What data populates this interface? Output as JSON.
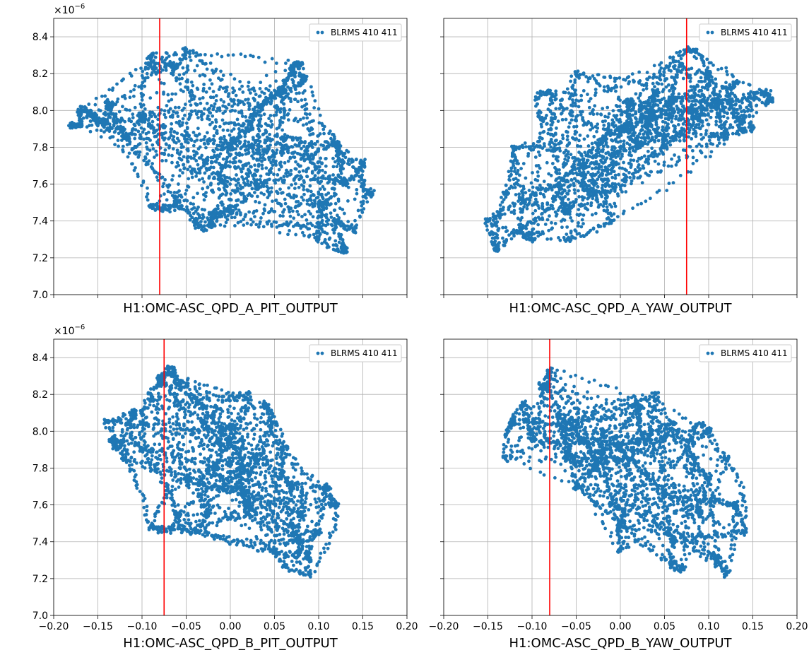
{
  "colors": {
    "series": "#1f77b4",
    "marker_line": "#ff0000",
    "grid": "#b0b0b0"
  },
  "y_exponent": {
    "base": "×10",
    "power": "−6"
  },
  "y_tick_labels": [
    "7.0",
    "7.2",
    "7.4",
    "7.6",
    "7.8",
    "8.0",
    "8.2",
    "8.4"
  ],
  "x_tick_labels": [
    "−0.20",
    "−0.15",
    "−0.10",
    "−0.05",
    "0.00",
    "0.05",
    "0.10",
    "0.15",
    "0.20"
  ],
  "chart_data": [
    {
      "type": "scatter",
      "xlabel": "H1:OMC-ASC_QPD_A_PIT_OUTPUT",
      "ylabel": "",
      "xlim": [
        -0.2,
        0.2
      ],
      "ylim": [
        7e-06,
        8.5e-06
      ],
      "grid": true,
      "legend_position": "top-right",
      "vline_x": -0.08,
      "x_tick_labels_shown": false,
      "y_tick_labels_shown": true,
      "series": [
        {
          "name": "BLRMS 410 411",
          "points": [
            [
              -0.18,
              7.92e-06
            ],
            [
              -0.17,
              7.97e-06
            ],
            [
              -0.16,
              7.99e-06
            ],
            [
              -0.15,
              7.93e-06
            ],
            [
              -0.14,
              8.05e-06
            ],
            [
              -0.12,
              7.85e-06
            ],
            [
              -0.1,
              7.95e-06
            ],
            [
              -0.09,
              8.3e-06
            ],
            [
              -0.07,
              8.25e-06
            ],
            [
              -0.05,
              8.33e-06
            ],
            [
              -0.06,
              7.5e-06
            ],
            [
              -0.09,
              7.48e-06
            ],
            [
              -0.04,
              7.4e-06
            ],
            [
              -0.02,
              7.38e-06
            ],
            [
              0.0,
              7.45e-06
            ],
            [
              -0.03,
              7.7e-06
            ],
            [
              0.0,
              7.8e-06
            ],
            [
              0.02,
              7.9e-06
            ],
            [
              0.04,
              8.05e-06
            ],
            [
              0.06,
              8.1e-06
            ],
            [
              0.07,
              8.2e-06
            ],
            [
              0.08,
              8.15e-06
            ],
            [
              0.06,
              7.85e-06
            ],
            [
              0.09,
              7.75e-06
            ],
            [
              0.12,
              7.82e-06
            ],
            [
              0.13,
              7.6e-06
            ],
            [
              0.15,
              7.72e-06
            ],
            [
              0.16,
              7.55e-06
            ],
            [
              0.14,
              7.35e-06
            ],
            [
              0.12,
              7.4e-06
            ],
            [
              0.13,
              7.24e-06
            ],
            [
              0.1,
              7.3e-06
            ],
            [
              0.11,
              7.5e-06
            ],
            [
              0.03,
              7.6e-06
            ],
            [
              -0.01,
              7.7e-06
            ],
            [
              0.08,
              8.25e-06
            ]
          ]
        }
      ]
    },
    {
      "type": "scatter",
      "xlabel": "H1:OMC-ASC_QPD_A_YAW_OUTPUT",
      "ylabel": "",
      "xlim": [
        -0.2,
        0.2
      ],
      "ylim": [
        7e-06,
        8.5e-06
      ],
      "grid": true,
      "legend_position": "top-right",
      "vline_x": 0.075,
      "x_tick_labels_shown": false,
      "y_tick_labels_shown": false,
      "series": [
        {
          "name": "BLRMS 410 411",
          "points": [
            [
              -0.15,
              7.4e-06
            ],
            [
              -0.14,
              7.25e-06
            ],
            [
              -0.13,
              7.55e-06
            ],
            [
              -0.12,
              7.8e-06
            ],
            [
              -0.11,
              7.5e-06
            ],
            [
              -0.1,
              7.3e-06
            ],
            [
              -0.09,
              7.95e-06
            ],
            [
              -0.08,
              8.1e-06
            ],
            [
              -0.07,
              7.6e-06
            ],
            [
              -0.06,
              7.45e-06
            ],
            [
              -0.05,
              8.2e-06
            ],
            [
              -0.04,
              7.7e-06
            ],
            [
              -0.03,
              7.55e-06
            ],
            [
              -0.02,
              7.85e-06
            ],
            [
              -0.01,
              7.4e-06
            ],
            [
              0.0,
              7.9e-06
            ],
            [
              0.01,
              8.05e-06
            ],
            [
              0.02,
              7.8e-06
            ],
            [
              0.03,
              7.95e-06
            ],
            [
              0.04,
              8.1e-06
            ],
            [
              0.05,
              7.8e-06
            ],
            [
              0.06,
              8.05e-06
            ],
            [
              0.07,
              8.25e-06
            ],
            [
              0.08,
              8e-06
            ],
            [
              0.09,
              7.95e-06
            ],
            [
              0.1,
              8.2e-06
            ],
            [
              0.11,
              8.05e-06
            ],
            [
              0.12,
              7.85e-06
            ],
            [
              0.13,
              8.15e-06
            ],
            [
              0.14,
              7.95e-06
            ],
            [
              0.15,
              7.9e-06
            ],
            [
              0.16,
              8.1e-06
            ],
            [
              0.17,
              8.05e-06
            ],
            [
              0.075,
              8.33e-06
            ],
            [
              -0.06,
              7.3e-06
            ]
          ]
        }
      ]
    },
    {
      "type": "scatter",
      "xlabel": "H1:OMC-ASC_QPD_B_PIT_OUTPUT",
      "ylabel": "",
      "xlim": [
        -0.2,
        0.2
      ],
      "ylim": [
        7e-06,
        8.5e-06
      ],
      "grid": true,
      "legend_position": "top-right",
      "vline_x": -0.075,
      "x_tick_labels_shown": true,
      "y_tick_labels_shown": true,
      "series": [
        {
          "name": "BLRMS 410 411",
          "points": [
            [
              -0.14,
              8.05e-06
            ],
            [
              -0.13,
              7.95e-06
            ],
            [
              -0.12,
              7.85e-06
            ],
            [
              -0.11,
              8.1e-06
            ],
            [
              -0.1,
              7.9e-06
            ],
            [
              -0.09,
              8.2e-06
            ],
            [
              -0.08,
              8.3e-06
            ],
            [
              -0.07,
              8.33e-06
            ],
            [
              -0.06,
              8.25e-06
            ],
            [
              -0.05,
              7.75e-06
            ],
            [
              -0.09,
              7.48e-06
            ],
            [
              -0.06,
              7.55e-06
            ],
            [
              -0.04,
              7.45e-06
            ],
            [
              -0.03,
              7.6e-06
            ],
            [
              -0.02,
              7.8e-06
            ],
            [
              -0.01,
              8e-06
            ],
            [
              0.0,
              7.95e-06
            ],
            [
              0.01,
              7.7e-06
            ],
            [
              0.02,
              7.55e-06
            ],
            [
              0.03,
              7.85e-06
            ],
            [
              0.04,
              8.15e-06
            ],
            [
              0.05,
              8.05e-06
            ],
            [
              0.06,
              7.9e-06
            ],
            [
              0.07,
              7.7e-06
            ],
            [
              0.08,
              7.55e-06
            ],
            [
              0.09,
              7.3e-06
            ],
            [
              0.1,
              7.45e-06
            ],
            [
              0.11,
              7.7e-06
            ],
            [
              0.12,
              7.6e-06
            ],
            [
              0.09,
              7.22e-06
            ],
            [
              0.05,
              7.35e-06
            ],
            [
              0.08,
              7.4e-06
            ],
            [
              -0.03,
              8.05e-06
            ],
            [
              0.02,
              8.2e-06
            ]
          ]
        }
      ]
    },
    {
      "type": "scatter",
      "xlabel": "H1:OMC-ASC_QPD_B_YAW_OUTPUT",
      "ylabel": "",
      "xlim": [
        -0.2,
        0.2
      ],
      "ylim": [
        7e-06,
        8.5e-06
      ],
      "grid": true,
      "legend_position": "top-right",
      "vline_x": -0.08,
      "x_tick_labels_shown": true,
      "y_tick_labels_shown": false,
      "series": [
        {
          "name": "BLRMS 410 411",
          "points": [
            [
              -0.13,
              7.85e-06
            ],
            [
              -0.12,
              8.05e-06
            ],
            [
              -0.11,
              8.15e-06
            ],
            [
              -0.1,
              7.95e-06
            ],
            [
              -0.09,
              8.25e-06
            ],
            [
              -0.08,
              8.33e-06
            ],
            [
              -0.07,
              8.1e-06
            ],
            [
              -0.06,
              7.85e-06
            ],
            [
              -0.05,
              8.05e-06
            ],
            [
              -0.04,
              7.95e-06
            ],
            [
              -0.03,
              7.8e-06
            ],
            [
              -0.02,
              8e-06
            ],
            [
              -0.01,
              7.6e-06
            ],
            [
              0.0,
              7.5e-06
            ],
            [
              0.0,
              7.35e-06
            ],
            [
              0.01,
              7.85e-06
            ],
            [
              0.02,
              8.15e-06
            ],
            [
              0.03,
              7.95e-06
            ],
            [
              0.04,
              8.2e-06
            ],
            [
              0.05,
              7.65e-06
            ],
            [
              0.06,
              7.4e-06
            ],
            [
              0.07,
              7.25e-06
            ],
            [
              0.08,
              7.95e-06
            ],
            [
              0.09,
              7.55e-06
            ],
            [
              0.1,
              7.75e-06
            ],
            [
              0.11,
              7.3e-06
            ],
            [
              0.12,
              7.22e-06
            ],
            [
              0.13,
              7.6e-06
            ],
            [
              0.14,
              7.45e-06
            ],
            [
              0.12,
              7.85e-06
            ],
            [
              0.1,
              8e-06
            ],
            [
              -0.05,
              7.7e-06
            ],
            [
              0.06,
              8.05e-06
            ]
          ]
        }
      ]
    }
  ]
}
